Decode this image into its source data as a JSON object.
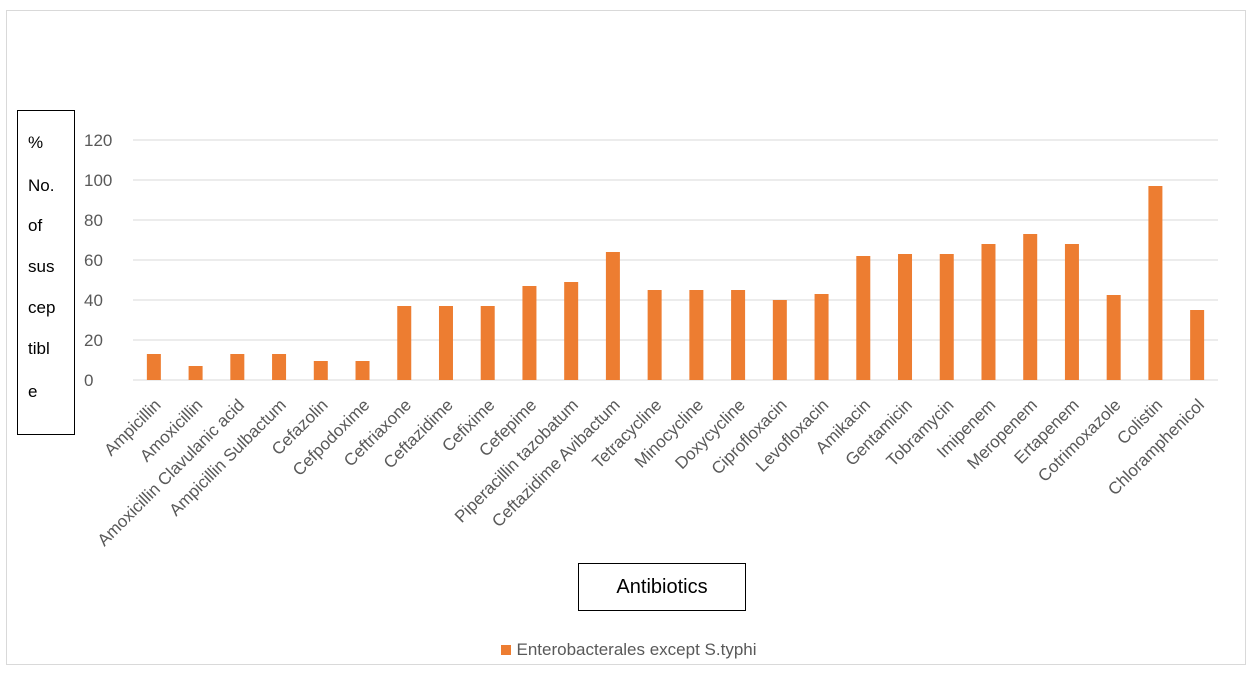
{
  "colors": {
    "bar": "#ED7D31",
    "gridline": "#d9d9d9",
    "tick_text": "#595959"
  },
  "ylabel_lines": [
    "%",
    "No.",
    "of",
    "sus",
    "cep",
    "tibl",
    "e"
  ],
  "chart_data": {
    "type": "bar",
    "xlabel": "Antibiotics",
    "ylabel": "% No. of susceptible",
    "ylim": [
      0,
      120
    ],
    "yticks": [
      0,
      20,
      40,
      60,
      80,
      100,
      120
    ],
    "grid": true,
    "legend_position": "bottom",
    "categories": [
      "Ampicillin",
      "Amoxicillin",
      "Amoxicillin Clavulanic acid",
      "Ampicillin Sulbactum",
      "Cefazolin",
      "Cefpodoxime",
      "Ceftriaxone",
      "Ceftazidime",
      "Cefixime",
      "Cefepime",
      "Piperacillin tazobatum",
      "Ceftazidime Avibactum",
      "Tetracycline",
      "Minocycline",
      "Doxycycline",
      "Ciprofloxacin",
      "Levofloxacin",
      "Amikacin",
      "Gentamicin",
      "Tobramycin",
      "Imipenem",
      "Meropenem",
      "Ertapenem",
      "Cotrimoxazole",
      "Colistin",
      "Chloramphenicol"
    ],
    "series": [
      {
        "name": "Enterobacterales except S.typhi",
        "values": [
          13,
          7,
          13,
          13,
          9.5,
          9.5,
          37,
          37,
          37,
          47,
          49,
          64,
          45,
          45,
          45,
          40,
          43,
          62,
          63,
          63,
          68,
          73,
          68,
          42.5,
          97,
          35
        ]
      }
    ]
  }
}
